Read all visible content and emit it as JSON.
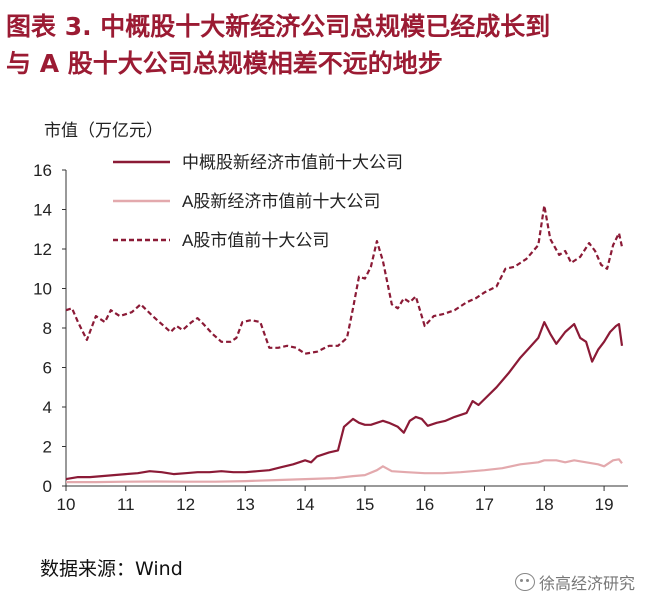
{
  "title": {
    "line1": "图表  3.   中概股十大新经济公司总规模已经成长到",
    "line2": "与 A 股十大公司总规模相差不远的地步"
  },
  "source_label": "数据来源：Wind",
  "watermark_text": "徐高经济研究",
  "chart_data": {
    "type": "line",
    "ylabel": "市值（万亿元）",
    "ylim": [
      0,
      16
    ],
    "yticks": [
      0,
      2,
      4,
      6,
      8,
      10,
      12,
      14,
      16
    ],
    "xlim": [
      10,
      19.4
    ],
    "xticks": [
      10,
      11,
      12,
      13,
      14,
      15,
      16,
      17,
      18,
      19
    ],
    "xtick_labels": [
      "10",
      "11",
      "12",
      "13",
      "14",
      "15",
      "16",
      "17",
      "18",
      "19"
    ],
    "legend_position": "top-center",
    "grid": false,
    "series": [
      {
        "name": "中概股新经济市值前十大公司",
        "color": "#8b1a36",
        "style": "solid",
        "points": [
          [
            10.0,
            0.35
          ],
          [
            10.2,
            0.45
          ],
          [
            10.4,
            0.45
          ],
          [
            10.6,
            0.5
          ],
          [
            10.8,
            0.55
          ],
          [
            11.0,
            0.6
          ],
          [
            11.2,
            0.65
          ],
          [
            11.4,
            0.75
          ],
          [
            11.6,
            0.7
          ],
          [
            11.8,
            0.6
          ],
          [
            12.0,
            0.65
          ],
          [
            12.2,
            0.7
          ],
          [
            12.4,
            0.7
          ],
          [
            12.6,
            0.75
          ],
          [
            12.8,
            0.7
          ],
          [
            13.0,
            0.7
          ],
          [
            13.2,
            0.75
          ],
          [
            13.4,
            0.8
          ],
          [
            13.6,
            0.95
          ],
          [
            13.8,
            1.1
          ],
          [
            14.0,
            1.3
          ],
          [
            14.1,
            1.2
          ],
          [
            14.2,
            1.5
          ],
          [
            14.4,
            1.7
          ],
          [
            14.55,
            1.8
          ],
          [
            14.65,
            3.0
          ],
          [
            14.8,
            3.4
          ],
          [
            14.9,
            3.2
          ],
          [
            15.0,
            3.1
          ],
          [
            15.1,
            3.1
          ],
          [
            15.2,
            3.2
          ],
          [
            15.3,
            3.3
          ],
          [
            15.4,
            3.2
          ],
          [
            15.55,
            3.0
          ],
          [
            15.65,
            2.7
          ],
          [
            15.75,
            3.3
          ],
          [
            15.85,
            3.5
          ],
          [
            15.95,
            3.4
          ],
          [
            16.05,
            3.05
          ],
          [
            16.2,
            3.2
          ],
          [
            16.35,
            3.3
          ],
          [
            16.5,
            3.5
          ],
          [
            16.7,
            3.7
          ],
          [
            16.8,
            4.3
          ],
          [
            16.9,
            4.1
          ],
          [
            17.0,
            4.4
          ],
          [
            17.2,
            5.0
          ],
          [
            17.4,
            5.7
          ],
          [
            17.6,
            6.5
          ],
          [
            17.75,
            7.0
          ],
          [
            17.9,
            7.5
          ],
          [
            18.0,
            8.3
          ],
          [
            18.1,
            7.7
          ],
          [
            18.2,
            7.2
          ],
          [
            18.35,
            7.8
          ],
          [
            18.5,
            8.2
          ],
          [
            18.6,
            7.5
          ],
          [
            18.7,
            7.3
          ],
          [
            18.8,
            6.3
          ],
          [
            18.9,
            6.9
          ],
          [
            19.0,
            7.3
          ],
          [
            19.1,
            7.8
          ],
          [
            19.2,
            8.1
          ],
          [
            19.25,
            8.2
          ],
          [
            19.3,
            7.1
          ]
        ]
      },
      {
        "name": "A股新经济市值前十大公司",
        "color": "#e3a9ad",
        "style": "solid",
        "points": [
          [
            10.0,
            0.2
          ],
          [
            10.5,
            0.2
          ],
          [
            11.0,
            0.22
          ],
          [
            11.5,
            0.23
          ],
          [
            12.0,
            0.22
          ],
          [
            12.5,
            0.22
          ],
          [
            13.0,
            0.25
          ],
          [
            13.5,
            0.3
          ],
          [
            14.0,
            0.35
          ],
          [
            14.5,
            0.4
          ],
          [
            14.8,
            0.5
          ],
          [
            15.0,
            0.55
          ],
          [
            15.2,
            0.8
          ],
          [
            15.3,
            1.0
          ],
          [
            15.45,
            0.75
          ],
          [
            15.7,
            0.7
          ],
          [
            16.0,
            0.65
          ],
          [
            16.3,
            0.65
          ],
          [
            16.6,
            0.7
          ],
          [
            17.0,
            0.8
          ],
          [
            17.3,
            0.9
          ],
          [
            17.6,
            1.1
          ],
          [
            17.9,
            1.2
          ],
          [
            18.0,
            1.3
          ],
          [
            18.2,
            1.3
          ],
          [
            18.35,
            1.2
          ],
          [
            18.5,
            1.3
          ],
          [
            18.7,
            1.2
          ],
          [
            18.9,
            1.1
          ],
          [
            19.0,
            1.0
          ],
          [
            19.15,
            1.3
          ],
          [
            19.25,
            1.35
          ],
          [
            19.3,
            1.15
          ]
        ]
      },
      {
        "name": "A股市值前十大公司",
        "color": "#8b1a36",
        "style": "dashed",
        "points": [
          [
            10.0,
            8.9
          ],
          [
            10.1,
            9.0
          ],
          [
            10.2,
            8.3
          ],
          [
            10.35,
            7.4
          ],
          [
            10.5,
            8.6
          ],
          [
            10.65,
            8.3
          ],
          [
            10.75,
            8.9
          ],
          [
            10.9,
            8.6
          ],
          [
            11.1,
            8.8
          ],
          [
            11.25,
            9.2
          ],
          [
            11.45,
            8.6
          ],
          [
            11.6,
            8.2
          ],
          [
            11.75,
            7.8
          ],
          [
            11.85,
            8.1
          ],
          [
            11.95,
            7.9
          ],
          [
            12.1,
            8.3
          ],
          [
            12.2,
            8.5
          ],
          [
            12.3,
            8.2
          ],
          [
            12.45,
            7.7
          ],
          [
            12.6,
            7.3
          ],
          [
            12.75,
            7.3
          ],
          [
            12.85,
            7.5
          ],
          [
            12.95,
            8.3
          ],
          [
            13.1,
            8.4
          ],
          [
            13.25,
            8.3
          ],
          [
            13.4,
            7.0
          ],
          [
            13.55,
            7.0
          ],
          [
            13.7,
            7.1
          ],
          [
            13.85,
            7.0
          ],
          [
            14.0,
            6.7
          ],
          [
            14.2,
            6.8
          ],
          [
            14.4,
            7.1
          ],
          [
            14.55,
            7.1
          ],
          [
            14.7,
            7.5
          ],
          [
            14.8,
            9.0
          ],
          [
            14.9,
            10.6
          ],
          [
            15.0,
            10.5
          ],
          [
            15.1,
            11.1
          ],
          [
            15.2,
            12.4
          ],
          [
            15.3,
            11.4
          ],
          [
            15.45,
            9.2
          ],
          [
            15.55,
            9.0
          ],
          [
            15.65,
            9.5
          ],
          [
            15.75,
            9.3
          ],
          [
            15.85,
            9.6
          ],
          [
            16.0,
            8.1
          ],
          [
            16.15,
            8.6
          ],
          [
            16.3,
            8.7
          ],
          [
            16.5,
            8.9
          ],
          [
            16.7,
            9.3
          ],
          [
            16.85,
            9.5
          ],
          [
            17.0,
            9.8
          ],
          [
            17.2,
            10.1
          ],
          [
            17.35,
            11.0
          ],
          [
            17.5,
            11.1
          ],
          [
            17.7,
            11.5
          ],
          [
            17.9,
            12.2
          ],
          [
            18.0,
            14.2
          ],
          [
            18.1,
            12.5
          ],
          [
            18.25,
            11.7
          ],
          [
            18.35,
            11.9
          ],
          [
            18.45,
            11.3
          ],
          [
            18.6,
            11.6
          ],
          [
            18.75,
            12.3
          ],
          [
            18.85,
            11.9
          ],
          [
            18.95,
            11.2
          ],
          [
            19.05,
            11.0
          ],
          [
            19.15,
            12.2
          ],
          [
            19.25,
            12.8
          ],
          [
            19.3,
            12.1
          ]
        ]
      }
    ]
  }
}
